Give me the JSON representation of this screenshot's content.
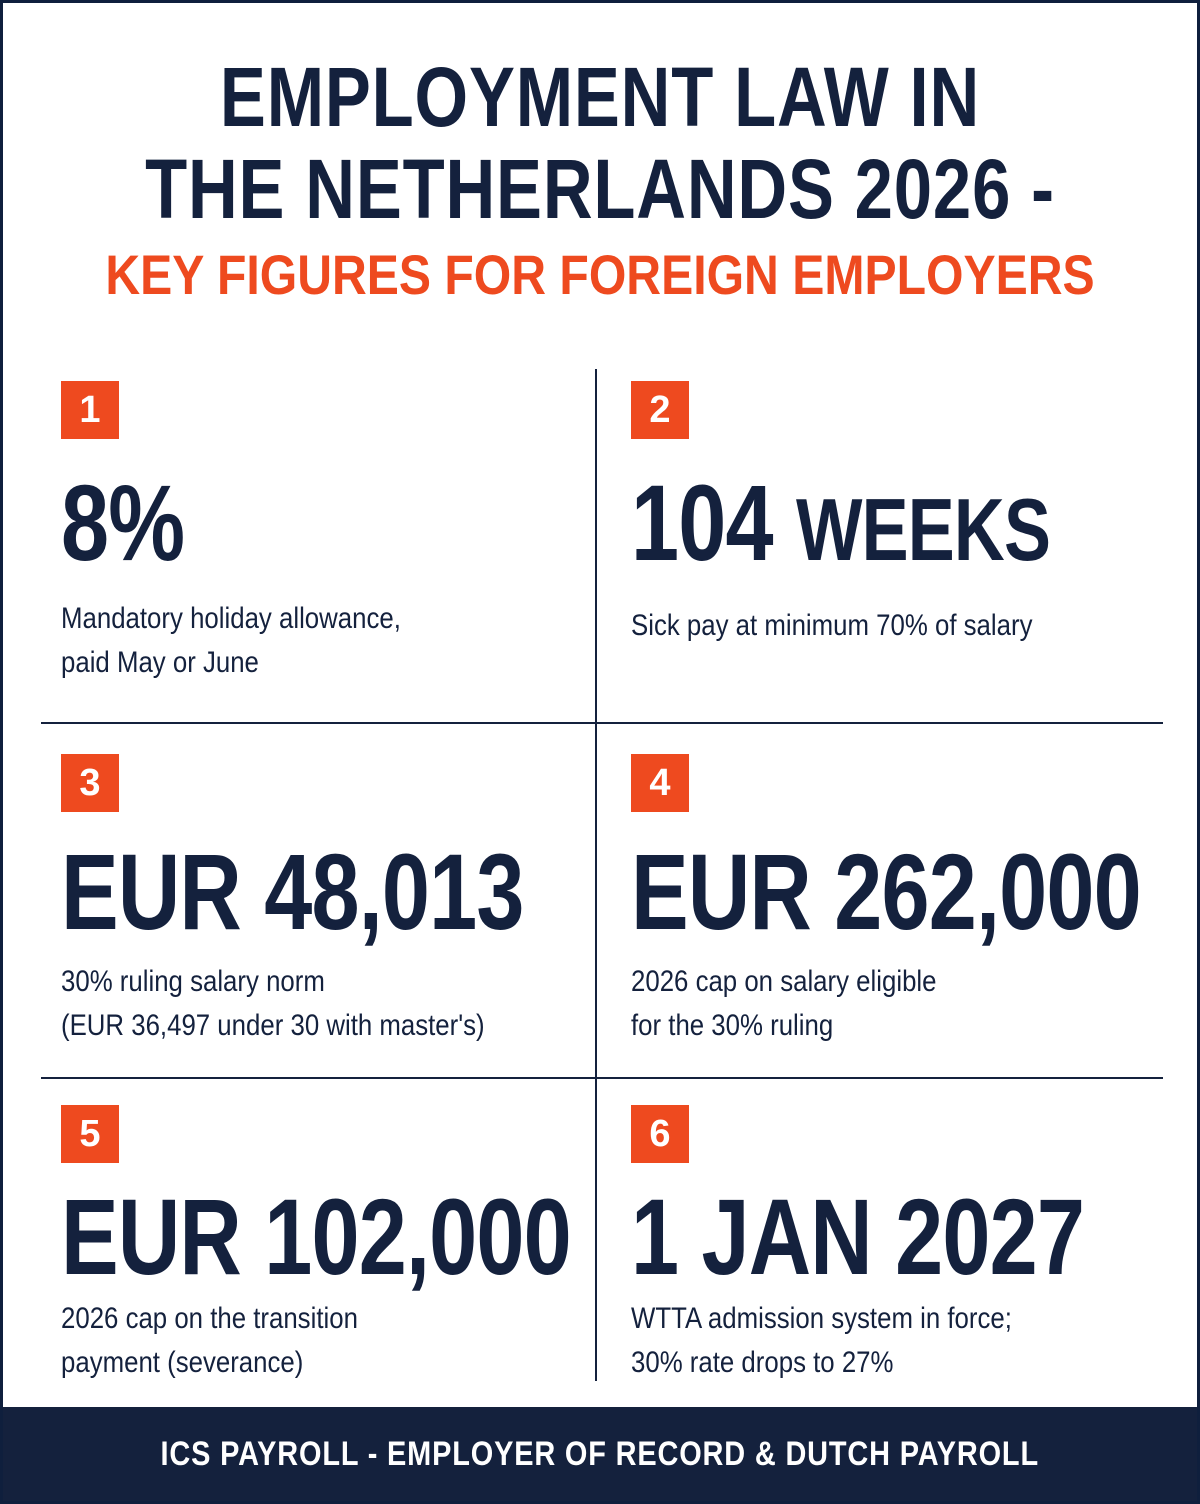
{
  "header": {
    "title_line1": "EMPLOYMENT LAW IN",
    "title_line2": "THE NETHERLANDS 2026 -",
    "subtitle": "KEY FIGURES FOR FOREIGN EMPLOYERS"
  },
  "cards": [
    {
      "number": "1",
      "value": "8%",
      "unit": "",
      "desc_line1": "Mandatory holiday allowance,",
      "desc_line2": "paid May or June"
    },
    {
      "number": "2",
      "value": "104",
      "unit": "WEEKS",
      "desc_line1": "Sick pay at minimum 70% of salary",
      "desc_line2": ""
    },
    {
      "number": "3",
      "value": "EUR 48,013",
      "unit": "",
      "desc_line1": "30% ruling salary norm",
      "desc_line2": "(EUR 36,497 under 30 with master's)"
    },
    {
      "number": "4",
      "value": "EUR 262,000",
      "unit": "",
      "desc_line1": "2026 cap on salary eligible",
      "desc_line2": "for the 30% ruling"
    },
    {
      "number": "5",
      "value": "EUR 102,000",
      "unit": "",
      "desc_line1": "2026 cap on the transition",
      "desc_line2": "payment (severance)"
    },
    {
      "number": "6",
      "value": "1 JAN 2027",
      "unit": "",
      "desc_line1": "WTTA admission system in force;",
      "desc_line2": "30% rate drops to 27%"
    }
  ],
  "footer": {
    "text": "ICS PAYROLL - EMPLOYER OF RECORD & DUTCH PAYROLL"
  },
  "colors": {
    "navy": "#14213d",
    "accent": "#ee4a1f",
    "background": "#ffffff"
  }
}
